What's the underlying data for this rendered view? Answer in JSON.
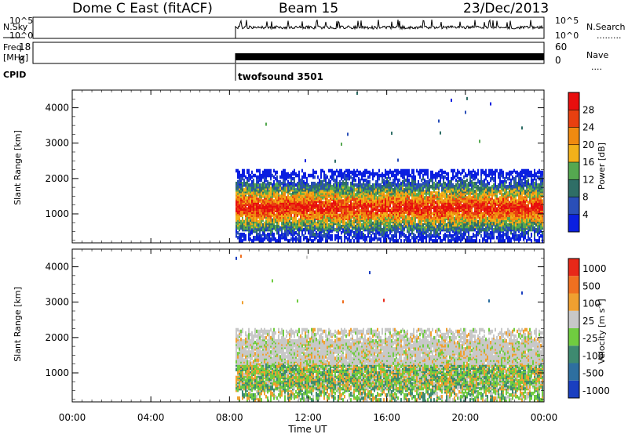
{
  "header": {
    "station": "Dome C East (fitACF)",
    "beam": "Beam 15",
    "date": "23/Dec/2013"
  },
  "panels": {
    "nsky": {
      "label": "N.Sky",
      "ticks": [
        "10^5",
        "10^0"
      ],
      "right_label": "N.Search",
      "right_ticks": [
        "10^5",
        "10^0"
      ],
      "right_ticks_top": "10^5",
      "right_ticks_bottom": "10^0"
    },
    "freq": {
      "label_line1": "Freq.",
      "label_line2": "[MHz]",
      "ticks": [
        "18",
        "8"
      ],
      "right_label": "Nave",
      "right_ticks": [
        "60",
        "0"
      ]
    },
    "cpid": {
      "label": "CPID",
      "program": "twofsound 3501"
    }
  },
  "chart_data": [
    {
      "type": "heatmap",
      "title": "",
      "ylabel": "Slant Range [km]",
      "xlabel": "Time UT",
      "x_range": [
        "00:00",
        "24:00"
      ],
      "ylim": [
        180,
        4500
      ],
      "yticks": [
        1000,
        2000,
        3000,
        4000
      ],
      "colorbar": {
        "label": "Power [dB]",
        "ticks": [
          4,
          8,
          12,
          16,
          20,
          24,
          28
        ],
        "colors": [
          "#0a1fe0",
          "#2a4fb8",
          "#2f6e66",
          "#55a850",
          "#f2b11a",
          "#f08a10",
          "#e84010",
          "#e80e0e"
        ]
      },
      "data_onset": "08:15",
      "series_name": "power"
    },
    {
      "type": "heatmap",
      "title": "",
      "ylabel": "Slant Range [km]",
      "xlabel": "Time UT",
      "x_range": [
        "00:00",
        "24:00"
      ],
      "ylim": [
        180,
        4500
      ],
      "yticks": [
        1000,
        2000,
        3000,
        4000
      ],
      "colorbar": {
        "label": "Velocity [m s",
        "label_sup": "-1",
        "label_end": "]",
        "ticks": [
          1000,
          500,
          100,
          25,
          -25,
          -100,
          -500,
          -1000
        ],
        "colors": [
          "#1a3fc0",
          "#2e6fa0",
          "#3e8a70",
          "#70cc40",
          "#c8c8c8",
          "#f0a030",
          "#f07020",
          "#e82818"
        ]
      },
      "data_onset": "08:15",
      "series_name": "velocity"
    }
  ],
  "xaxis": {
    "ticks": [
      "00:00",
      "04:00",
      "08:00",
      "12:00",
      "16:00",
      "20:00",
      "00:00"
    ],
    "label": "Time UT"
  }
}
